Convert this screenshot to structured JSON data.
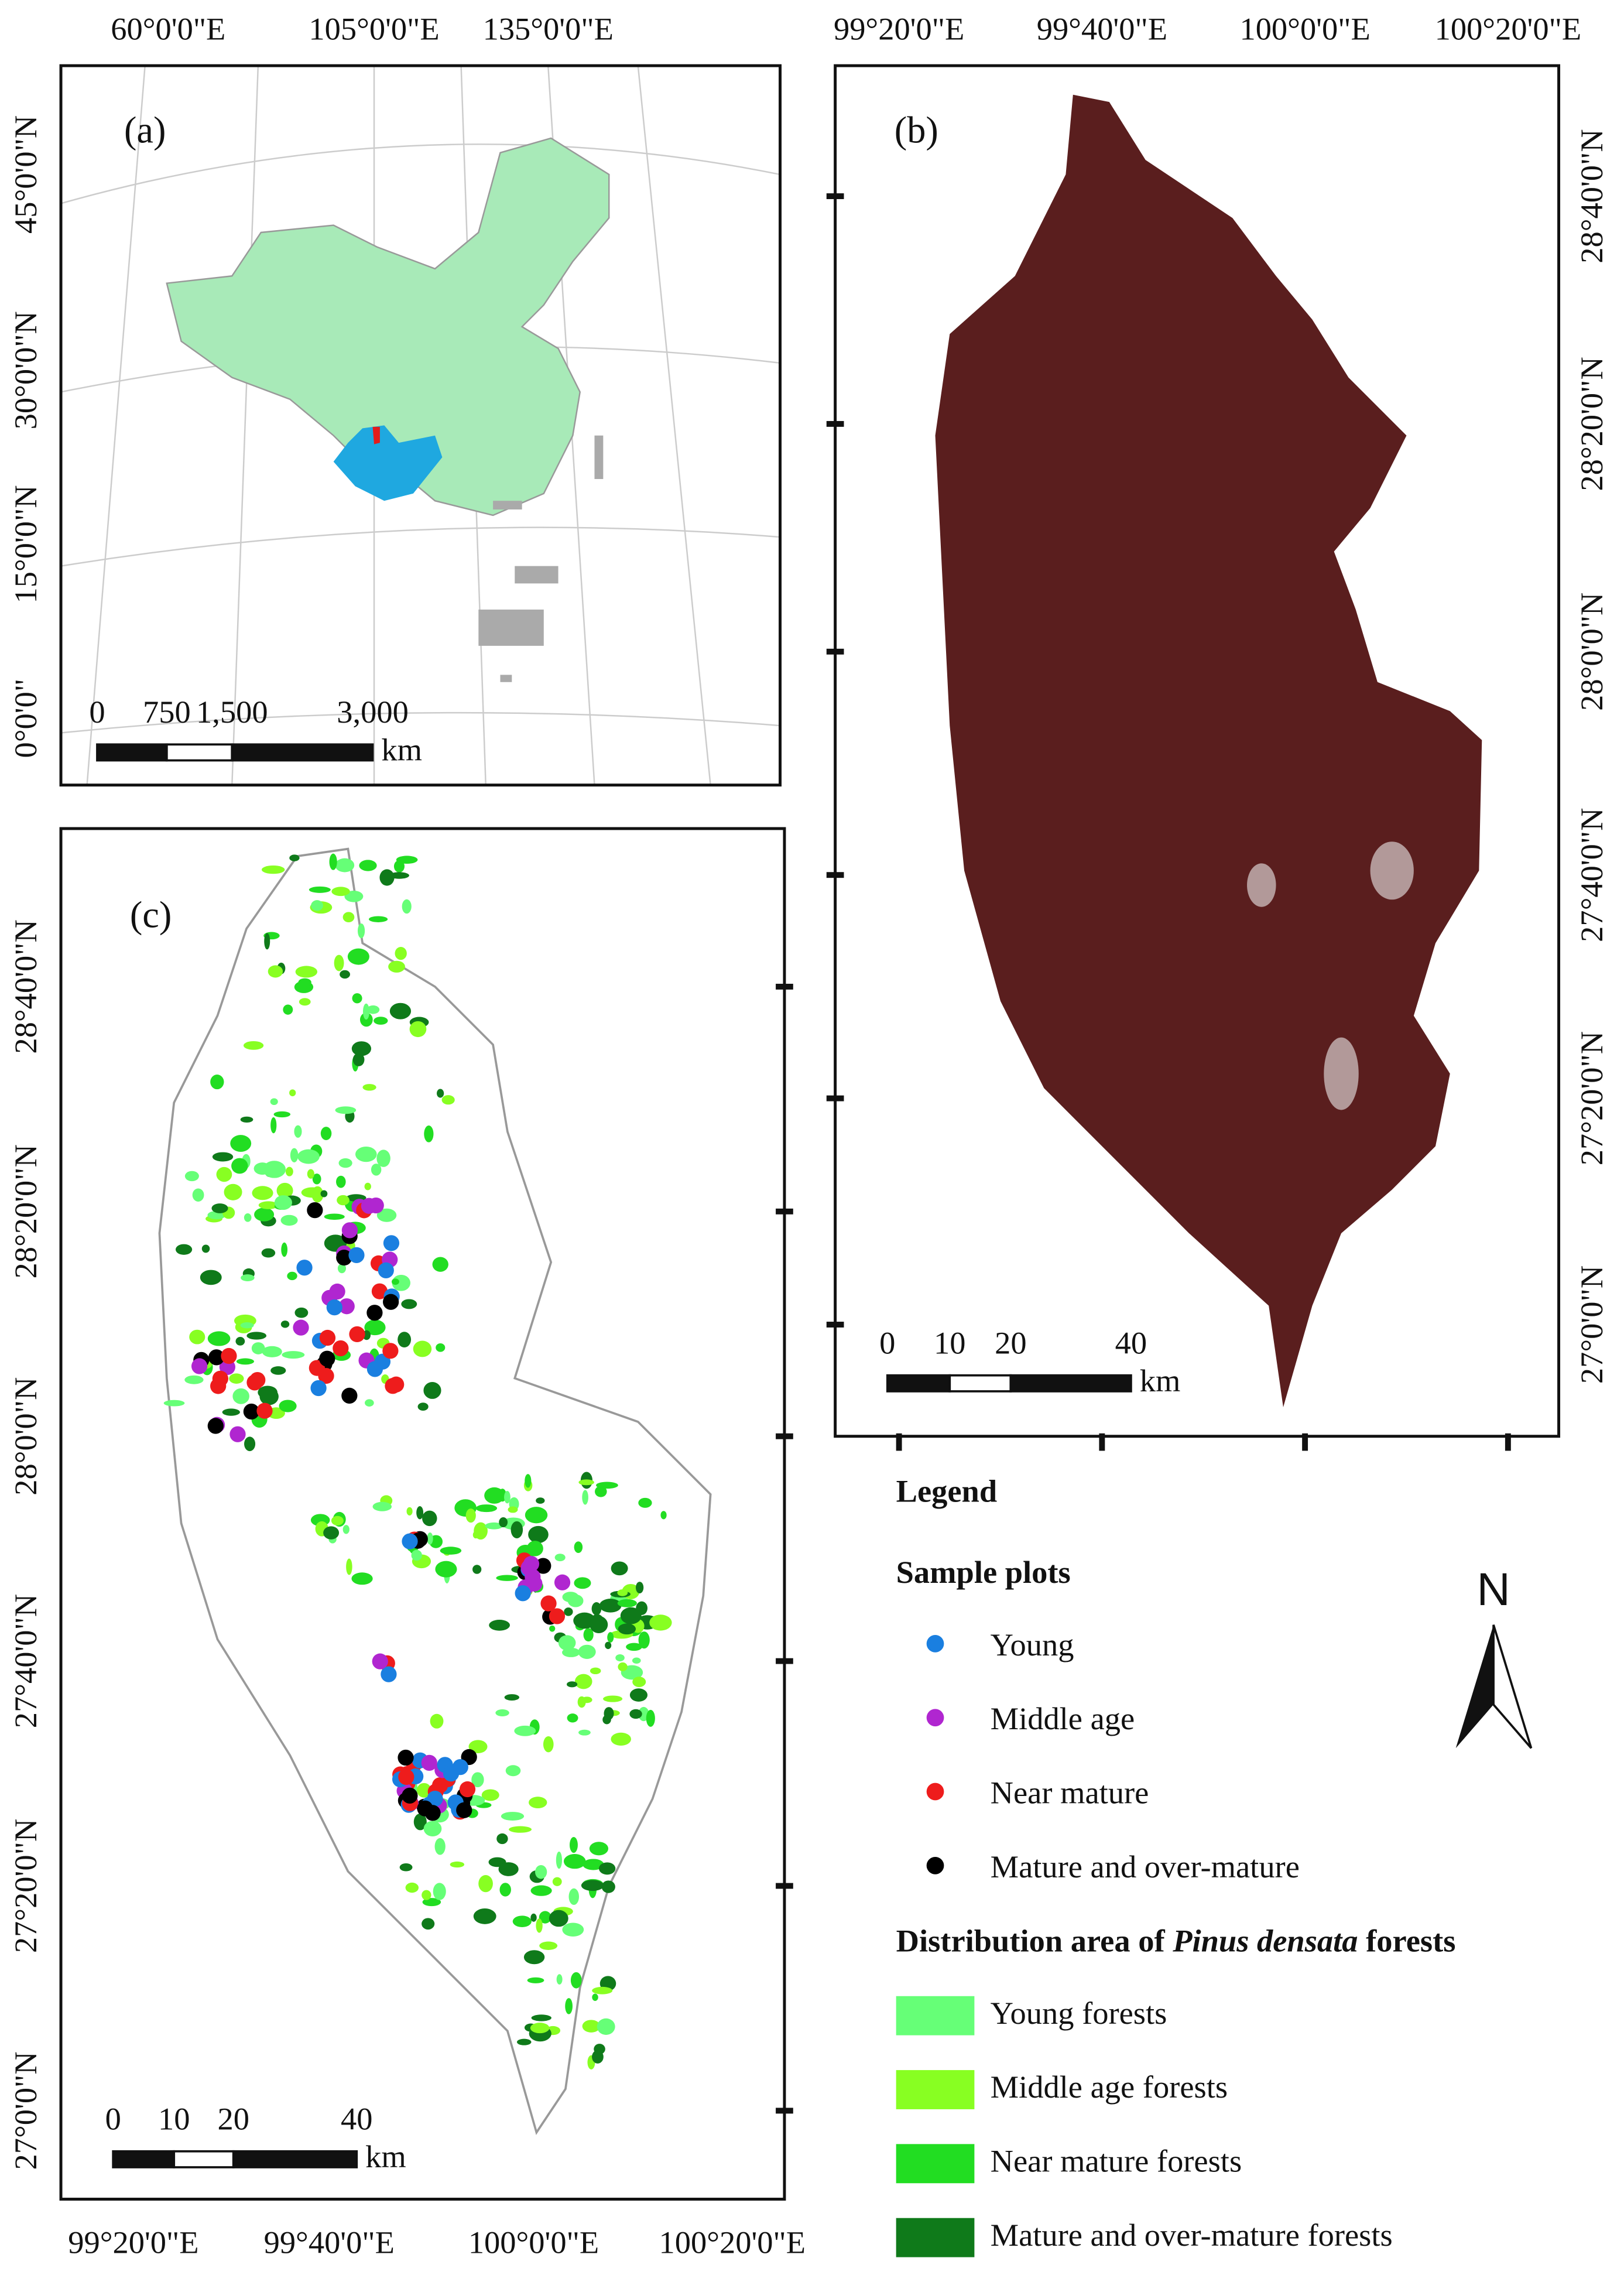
{
  "panels": [
    {
      "label": "(a)",
      "lon_labels": [
        "60°0'0\"E",
        "105°0'0\"E",
        "135°0'0\"E"
      ],
      "lat_labels": [
        "45°0'0\"N",
        "30°0'0\"N",
        "15°0'0\"N",
        "0°0'0\""
      ],
      "scale_labels": [
        "0",
        "750",
        "1,500",
        "3,000"
      ],
      "scale_unit": "km"
    },
    {
      "label": "(b)",
      "lon_labels": [
        "99°20'0\"E",
        "99°40'0\"E",
        "100°0'0\"E",
        "100°20'0\"E"
      ],
      "lat_labels": [
        "28°40'0\"N",
        "28°20'0\"N",
        "28°0'0\"N",
        "27°40'0\"N",
        "27°20'0\"N",
        "27°0'0\"N"
      ],
      "scale_labels": [
        "0",
        "10",
        "20",
        "40"
      ],
      "scale_unit": "km"
    },
    {
      "label": "(c)",
      "lon_labels": [
        "99°20'0\"E",
        "99°40'0\"E",
        "100°0'0\"E",
        "100°20'0\"E"
      ],
      "lat_labels": [
        "28°40'0\"N",
        "28°20'0\"N",
        "28°0'0\"N",
        "27°40'0\"N",
        "27°20'0\"N",
        "27°0'0\"N"
      ],
      "scale_labels": [
        "0",
        "10",
        "20",
        "40"
      ],
      "scale_unit": "km"
    }
  ],
  "legend": {
    "title": "Legend",
    "plots_heading": "Sample plots",
    "plots": [
      {
        "name": "Young",
        "color": "#1a7fe0"
      },
      {
        "name": "Middle age",
        "color": "#b026d0"
      },
      {
        "name": "Near mature",
        "color": "#ee1c1c"
      },
      {
        "name": "Mature and over-mature",
        "color": "#000000"
      }
    ],
    "area_heading": [
      "Distribution area of ",
      "Pinus densata",
      " forests"
    ],
    "areas": [
      {
        "name": "Young forests",
        "color": "#66ff77"
      },
      {
        "name": "Middle age forests",
        "color": "#88ff22"
      },
      {
        "name": "Near mature forests",
        "color": "#22dd22"
      },
      {
        "name": "Mature and over-mature forests",
        "color": "#0f7a1a"
      }
    ],
    "north": "N"
  }
}
